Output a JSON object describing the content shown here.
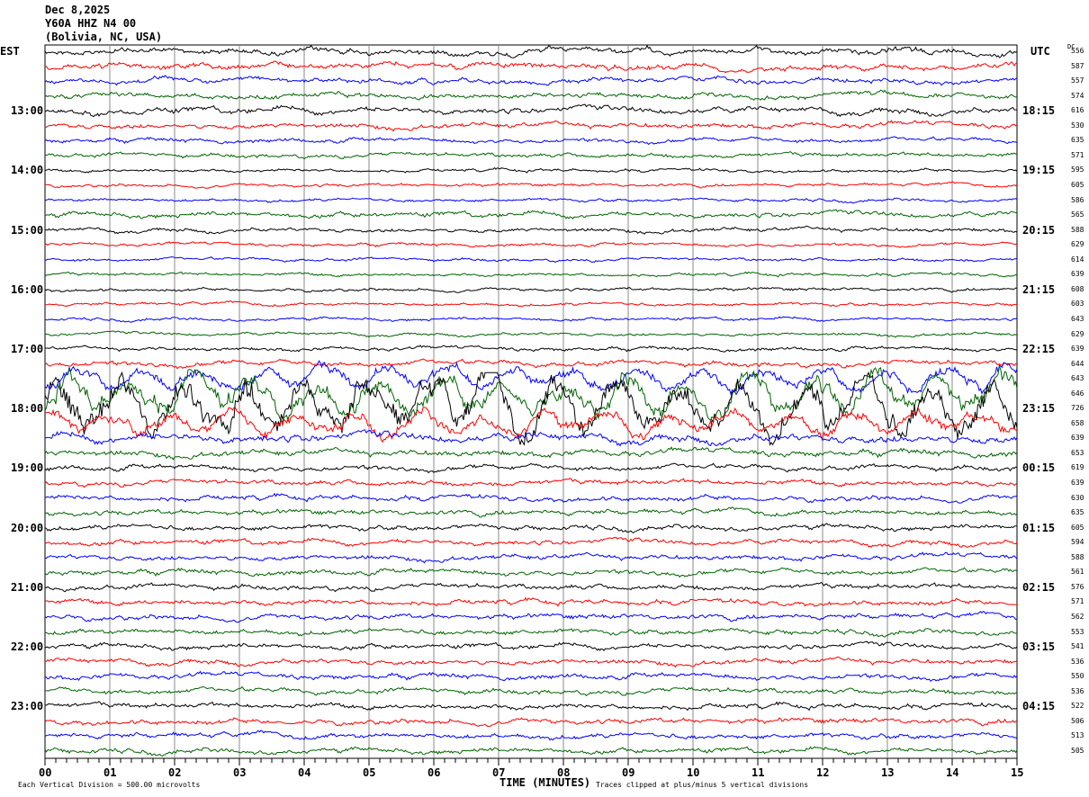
{
  "header": {
    "date": "Dec 8,2025",
    "station": "Y60A HHZ N4 00",
    "location": "(Bolivia, NC, USA)"
  },
  "left_tz": "EST",
  "right_tz": "UTC",
  "dc_label": "DC",
  "footer": {
    "scale": "Each Vertical Division =  500.00 microvolts",
    "xlabel": "TIME (MINUTES)",
    "clip": "Traces clipped at plus/minus 5 vertical divisions"
  },
  "chart_data": {
    "type": "line",
    "title": "Y60A HHZ N4 00 helicorder Dec 8,2025",
    "xlabel": "TIME (MINUTES)",
    "xlim": [
      0,
      15
    ],
    "x_ticks": [
      "00",
      "01",
      "02",
      "03",
      "04",
      "05",
      "06",
      "07",
      "08",
      "09",
      "10",
      "11",
      "12",
      "13",
      "14",
      "15"
    ],
    "colors": [
      "#000000",
      "#ff0000",
      "#0000ff",
      "#006400"
    ],
    "est_labels": [
      "13:00",
      "14:00",
      "15:00",
      "16:00",
      "17:00",
      "18:00",
      "19:00",
      "20:00",
      "21:00",
      "22:00",
      "23:00"
    ],
    "utc_labels": [
      "18:15",
      "19:15",
      "20:15",
      "21:15",
      "22:15",
      "23:15",
      "00:15",
      "01:15",
      "02:15",
      "03:15",
      "04:15"
    ],
    "dc_values": [
      "556",
      "587",
      "557",
      "574",
      "616",
      "530",
      "635",
      "571",
      "595",
      "605",
      "586",
      "565",
      "588",
      "629",
      "614",
      "639",
      "608",
      "603",
      "643",
      "629",
      "639",
      "644",
      "643",
      "646",
      "726",
      "658",
      "639",
      "653",
      "619",
      "639",
      "630",
      "635",
      "605",
      "594",
      "588",
      "561",
      "576",
      "571",
      "562",
      "553",
      "541",
      "536",
      "550",
      "536",
      "522",
      "506",
      "513",
      "505"
    ],
    "relative_amplitude": [
      3,
      3,
      2.5,
      2.5,
      3,
      2.5,
      2,
      2,
      1.5,
      1.5,
      1.5,
      2.5,
      2,
      1.5,
      1.5,
      1.5,
      1.5,
      1.5,
      1.5,
      1.5,
      1.8,
      2.5,
      6,
      10,
      14,
      6,
      4,
      3,
      2.5,
      2.5,
      2.5,
      2.5,
      2.5,
      2.5,
      2.5,
      2.5,
      2.5,
      2.5,
      2.5,
      2.5,
      2.5,
      2.5,
      2.5,
      2.5,
      2.5,
      2.5,
      2.5,
      2.5
    ]
  }
}
